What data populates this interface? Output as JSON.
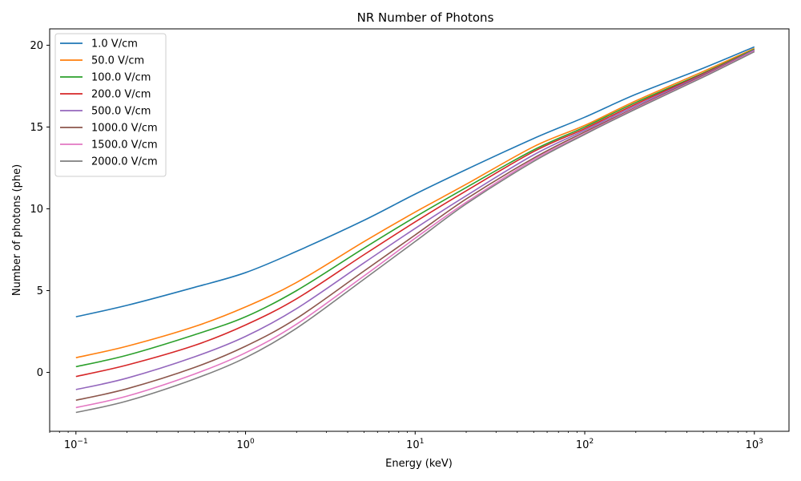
{
  "chart_data": {
    "type": "line",
    "title": "NR Number of Photons",
    "xlabel": "Energy (keV)",
    "ylabel": "Number of photons (phe)",
    "xscale": "log",
    "xlim": [
      0.07,
      1600
    ],
    "ylim": [
      -3.6,
      21.0
    ],
    "x_ticks": [
      0.1,
      1,
      10,
      100,
      1000
    ],
    "x_tick_labels": [
      {
        "base": "10",
        "exp": "−1"
      },
      {
        "base": "10",
        "exp": "0"
      },
      {
        "base": "10",
        "exp": "1"
      },
      {
        "base": "10",
        "exp": "2"
      },
      {
        "base": "10",
        "exp": "3"
      }
    ],
    "y_ticks": [
      0,
      5,
      10,
      15,
      20
    ],
    "y_tick_labels": [
      "0",
      "5",
      "10",
      "15",
      "20"
    ],
    "grid": false,
    "legend_position": "top-left",
    "x": [
      0.1,
      0.2,
      0.5,
      1,
      2,
      5,
      10,
      20,
      50,
      100,
      200,
      500,
      1000
    ],
    "series": [
      {
        "name": "1.0 V/cm",
        "color": "#1f77b4",
        "values": [
          3.4,
          4.1,
          5.2,
          6.1,
          7.4,
          9.3,
          10.9,
          12.4,
          14.3,
          15.6,
          17.0,
          18.6,
          19.9
        ]
      },
      {
        "name": "50.0 V/cm",
        "color": "#ff7f0e",
        "values": [
          0.9,
          1.6,
          2.8,
          4.0,
          5.5,
          8.0,
          9.8,
          11.5,
          13.8,
          15.1,
          16.6,
          18.4,
          19.8
        ]
      },
      {
        "name": "100.0 V/cm",
        "color": "#2ca02c",
        "values": [
          0.35,
          1.05,
          2.3,
          3.4,
          5.0,
          7.6,
          9.5,
          11.3,
          13.6,
          15.0,
          16.5,
          18.3,
          19.75
        ]
      },
      {
        "name": "200.0 V/cm",
        "color": "#d62728",
        "values": [
          -0.25,
          0.45,
          1.65,
          2.9,
          4.5,
          7.2,
          9.2,
          11.1,
          13.5,
          14.9,
          16.4,
          18.25,
          19.7
        ]
      },
      {
        "name": "500.0 V/cm",
        "color": "#9467bd",
        "values": [
          -1.05,
          -0.35,
          0.95,
          2.2,
          3.9,
          6.7,
          8.8,
          10.8,
          13.3,
          14.8,
          16.3,
          18.2,
          19.7
        ]
      },
      {
        "name": "1000.0 V/cm",
        "color": "#8c564b",
        "values": [
          -1.7,
          -1.0,
          0.3,
          1.6,
          3.3,
          6.2,
          8.4,
          10.6,
          13.1,
          14.7,
          16.2,
          18.15,
          19.65
        ]
      },
      {
        "name": "1500.0 V/cm",
        "color": "#e377c2",
        "values": [
          -2.15,
          -1.45,
          -0.1,
          1.2,
          2.95,
          5.9,
          8.2,
          10.4,
          13.0,
          14.6,
          16.15,
          18.1,
          19.65
        ]
      },
      {
        "name": "2000.0 V/cm",
        "color": "#7f7f7f",
        "values": [
          -2.45,
          -1.75,
          -0.4,
          0.9,
          2.7,
          5.7,
          8.0,
          10.3,
          12.9,
          14.55,
          16.1,
          18.05,
          19.6
        ]
      }
    ]
  }
}
